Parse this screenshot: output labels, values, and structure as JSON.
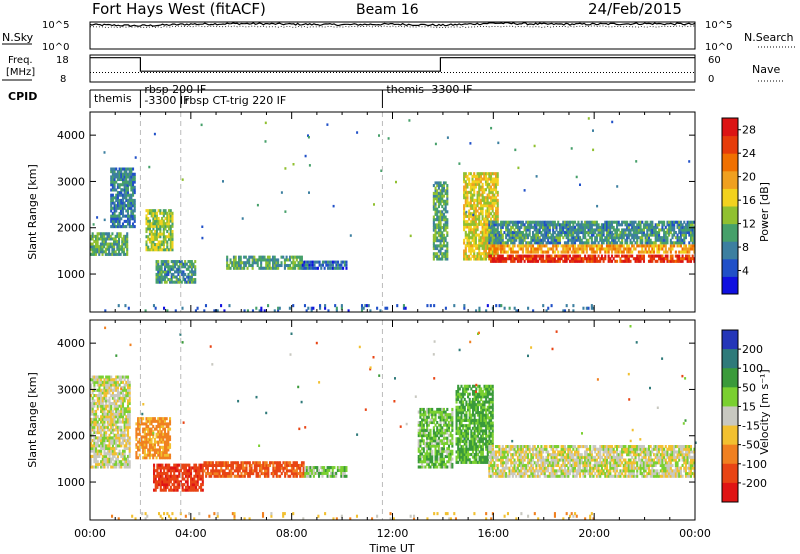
{
  "header": {
    "title": "Fort Hays West (fitACF)",
    "beam": "Beam 16",
    "date": "24/Feb/2015"
  },
  "top_panels": {
    "nsky_label": "N.Sky",
    "nsearch_label": "N.Search",
    "freq_label_1": "Freq.",
    "freq_label_2": "[MHz]",
    "nave_label": "Nave",
    "cpid_label": "CPID",
    "noise_ticks_left": [
      "10^5",
      "10^0"
    ],
    "noise_ticks_right": [
      "10^5",
      "10^0"
    ],
    "freq_ticks": [
      "18",
      "8"
    ],
    "nave_ticks": [
      "60",
      "0"
    ],
    "cpid_segments": [
      {
        "start_hour": 0.0,
        "label": "themis"
      },
      {
        "start_hour": 2.0,
        "label": "rbsp 200 IF"
      },
      {
        "start_hour": 2.0,
        "label": "-3300 IF"
      },
      {
        "start_hour": 3.6,
        "label": "rbsp CT-trig 220 IF"
      },
      {
        "start_hour": 11.6,
        "label": "themis -3300 IF"
      }
    ],
    "mode_change_hours": [
      2.0,
      3.6,
      11.6
    ]
  },
  "colorbars": {
    "power": {
      "label": "Power [dB]",
      "ticks": [
        "4",
        "8",
        "12",
        "16",
        "20",
        "24",
        "28"
      ],
      "colors": [
        "#1010e0",
        "#2050c8",
        "#3c7fa0",
        "#46a06a",
        "#90c030",
        "#f2d21e",
        "#f0a020",
        "#f07000",
        "#e63c0a",
        "#dc1414"
      ]
    },
    "velocity": {
      "label": "Velocity [m s⁻¹]",
      "ticks": [
        "200",
        "100",
        "50",
        "15",
        "-15",
        "-50",
        "-100",
        "-200"
      ],
      "colors": [
        "#2436b8",
        "#2f7a7a",
        "#3a9a3a",
        "#7ad030",
        "#c8c8c0",
        "#f2c030",
        "#f08020",
        "#e84414",
        "#e01414"
      ]
    }
  },
  "axes": {
    "ylabel": "Slant Range [km]",
    "yticks": [
      "1000",
      "2000",
      "3000",
      "4000"
    ],
    "xticks": [
      "00:00",
      "04:00",
      "08:00",
      "12:00",
      "16:00",
      "20:00",
      "00:00"
    ],
    "xlabel": "Time UT"
  },
  "chart_data": [
    {
      "type": "line",
      "title": "N.Sky",
      "x_unit": "hours UT",
      "xlim": [
        0,
        24
      ],
      "series": [
        {
          "name": "N.Sky",
          "x": [
            0,
            2,
            4,
            6,
            8,
            10,
            12,
            14,
            16,
            18,
            20,
            22,
            24
          ],
          "values": [
            4.5,
            4.3,
            4.6,
            4.7,
            4.6,
            4.5,
            4.6,
            4.4,
            4.8,
            4.6,
            4.6,
            4.7,
            4.6
          ]
        },
        {
          "name": "N.Search",
          "x": [
            0,
            2,
            4,
            6,
            8,
            10,
            12,
            14,
            16,
            18,
            20,
            22,
            24
          ],
          "values": [
            4.1,
            4.0,
            4.2,
            4.2,
            4.1,
            4.1,
            4.2,
            4.0,
            4.2,
            4.1,
            4.2,
            4.1,
            4.2
          ]
        }
      ]
    },
    {
      "type": "line",
      "title": "Freq. [MHz]",
      "x_unit": "hours UT",
      "xlim": [
        0,
        24
      ],
      "series": [
        {
          "name": "Freq",
          "x": [
            0,
            2.0,
            2.0,
            13.9,
            13.9,
            24
          ],
          "values": [
            17,
            17,
            12,
            12,
            17,
            17
          ]
        },
        {
          "name": "Nave",
          "x": [
            0,
            24
          ],
          "values": [
            21,
            21
          ]
        }
      ]
    },
    {
      "type": "heatmap",
      "title": "Power [dB]",
      "ylabel": "Slant Range [km]",
      "xlabel": "Time UT",
      "xlim": [
        0,
        24
      ],
      "ylim": [
        180,
        4500
      ],
      "clim": [
        0,
        30
      ],
      "blobs": [
        {
          "t0": 0.0,
          "t1": 1.5,
          "r0": 1400,
          "r1": 1900,
          "value": 11
        },
        {
          "t0": 0.8,
          "t1": 1.8,
          "r0": 2000,
          "r1": 3300,
          "value": 8
        },
        {
          "t0": 2.2,
          "t1": 3.3,
          "r0": 1500,
          "r1": 2400,
          "value": 14
        },
        {
          "t0": 2.6,
          "t1": 4.2,
          "r0": 800,
          "r1": 1300,
          "value": 9
        },
        {
          "t0": 5.4,
          "t1": 8.5,
          "r0": 1100,
          "r1": 1400,
          "value": 10
        },
        {
          "t0": 8.4,
          "t1": 10.2,
          "r0": 1100,
          "r1": 1300,
          "value": 6
        },
        {
          "t0": 13.6,
          "t1": 14.2,
          "r0": 1300,
          "r1": 3000,
          "value": 11
        },
        {
          "t0": 14.8,
          "t1": 16.2,
          "r0": 1300,
          "r1": 3200,
          "value": 16
        },
        {
          "t0": 15.8,
          "t1": 24.0,
          "r0": 1450,
          "r1": 1650,
          "value": 20
        },
        {
          "t0": 15.8,
          "t1": 24.0,
          "r0": 1250,
          "r1": 1420,
          "value": 27
        },
        {
          "t0": 15.8,
          "t1": 24.0,
          "r0": 1650,
          "r1": 2150,
          "value": 9
        },
        {
          "t0": 0.5,
          "t1": 20.0,
          "r0": 180,
          "r1": 350,
          "value": 6
        }
      ]
    },
    {
      "type": "heatmap",
      "title": "Velocity [m s⁻¹]",
      "ylabel": "Slant Range [km]",
      "xlabel": "Time UT",
      "xlim": [
        0,
        24
      ],
      "ylim": [
        180,
        4500
      ],
      "clim": [
        -200,
        200
      ],
      "blobs": [
        {
          "t0": 0.0,
          "t1": 1.6,
          "r0": 1300,
          "r1": 3300,
          "value": 0
        },
        {
          "t0": 1.8,
          "t1": 3.2,
          "r0": 1500,
          "r1": 2400,
          "value": -60
        },
        {
          "t0": 2.5,
          "t1": 4.5,
          "r0": 800,
          "r1": 1400,
          "value": -180
        },
        {
          "t0": 4.5,
          "t1": 8.5,
          "r0": 1100,
          "r1": 1450,
          "value": -110
        },
        {
          "t0": 8.5,
          "t1": 10.2,
          "r0": 1100,
          "r1": 1350,
          "value": 30
        },
        {
          "t0": 13.0,
          "t1": 14.4,
          "r0": 1300,
          "r1": 2600,
          "value": 40
        },
        {
          "t0": 14.5,
          "t1": 16.0,
          "r0": 1400,
          "r1": 3100,
          "value": 60
        },
        {
          "t0": 15.8,
          "t1": 24.0,
          "r0": 1100,
          "r1": 1800,
          "value": 0
        },
        {
          "t0": 0.5,
          "t1": 20.0,
          "r0": 180,
          "r1": 350,
          "value": -40
        }
      ]
    }
  ]
}
